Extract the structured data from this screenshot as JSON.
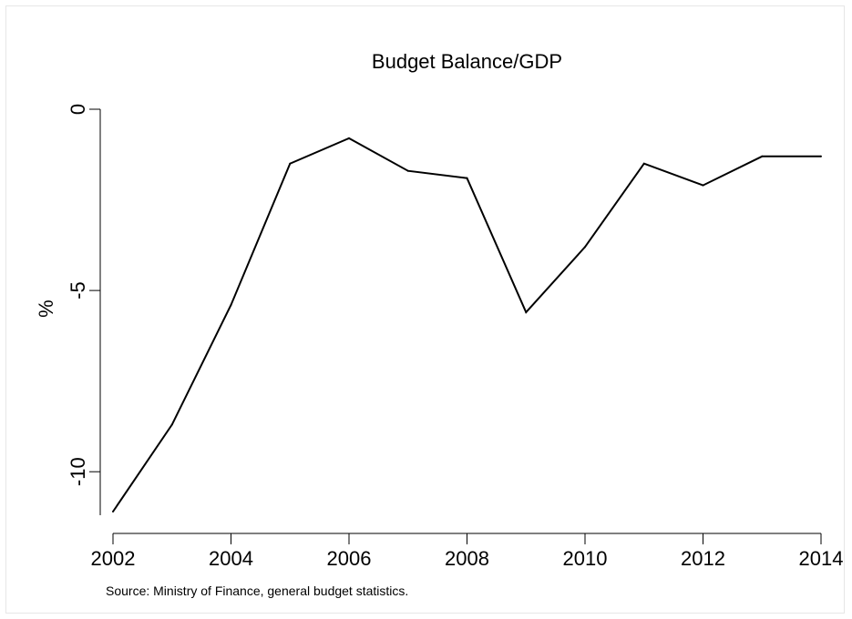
{
  "chart_data": {
    "type": "line",
    "title": "Budget Balance/GDP",
    "xlabel": "",
    "ylabel": "%",
    "source": "Source: Ministry of Finance, general budget statistics.",
    "xlim": [
      2002,
      2014
    ],
    "ylim": [
      -11.2,
      0
    ],
    "x_ticks": [
      2002,
      2004,
      2006,
      2008,
      2010,
      2012,
      2014
    ],
    "y_ticks": [
      0,
      -5,
      -10
    ],
    "grid": false,
    "series": [
      {
        "color": "#000000",
        "x": [
          2002,
          2003,
          2004,
          2005,
          2006,
          2007,
          2008,
          2009,
          2010,
          2011,
          2012,
          2013,
          2014
        ],
        "y": [
          -11.1,
          -8.7,
          -5.4,
          -1.5,
          -0.8,
          -1.7,
          -1.9,
          -5.6,
          -3.8,
          -1.5,
          -2.1,
          -1.3,
          -1.3
        ]
      }
    ]
  }
}
